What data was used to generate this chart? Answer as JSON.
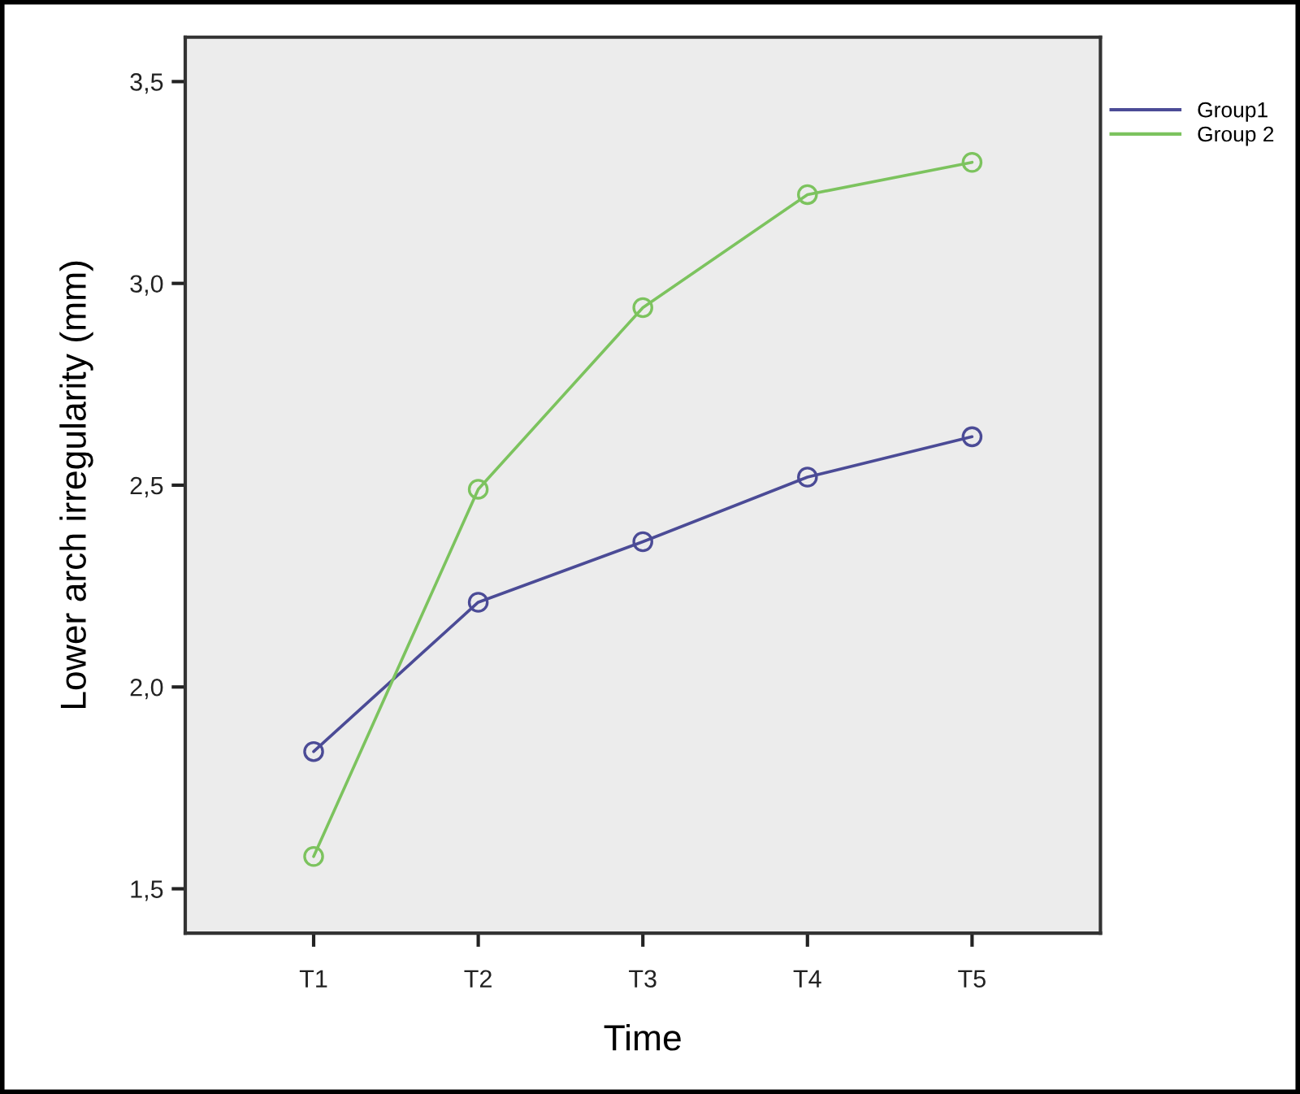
{
  "chart_data": {
    "type": "line",
    "xlabel": "Time",
    "ylabel": "Lower arch irregularity (mm)",
    "categories": [
      "T1",
      "T2",
      "T3",
      "T4",
      "T5"
    ],
    "series": [
      {
        "name": "Group1",
        "color": "#4b4b96",
        "values": [
          1.84,
          2.21,
          2.36,
          2.52,
          2.62
        ]
      },
      {
        "name": "Group 2",
        "color": "#7cc35e",
        "values": [
          1.58,
          2.49,
          2.94,
          3.22,
          3.3
        ]
      }
    ],
    "ylim": [
      1.39,
      3.61
    ],
    "yticks": [
      {
        "value": 1.5,
        "label": "1,5"
      },
      {
        "value": 2.0,
        "label": "2,0"
      },
      {
        "value": 2.5,
        "label": "2,5"
      },
      {
        "value": 3.0,
        "label": "3,0"
      },
      {
        "value": 3.5,
        "label": "3,5"
      }
    ],
    "marker": "circle",
    "line_style": "solid",
    "grid": false,
    "legend": "top right"
  }
}
